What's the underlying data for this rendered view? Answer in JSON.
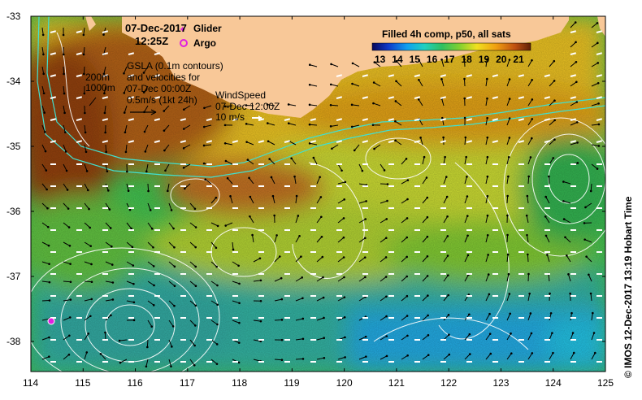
{
  "header": {
    "date": "07-Dec-2017",
    "time": "12:25Z",
    "legend_glider": "Glider",
    "legend_argo": "Argo"
  },
  "colorbar": {
    "title": "Filled 4h comp, p50, all sats",
    "ticks": [
      "13",
      "14",
      "15",
      "16",
      "17",
      "18",
      "19",
      "20",
      "21"
    ],
    "colors": [
      "#08085a",
      "#1038c8",
      "#10a0f0",
      "#20d0c0",
      "#30c060",
      "#80d030",
      "#f0e020",
      "#f0a010",
      "#c05010",
      "#602008"
    ]
  },
  "annotations": {
    "gsla": [
      "GSLA (0.1m contours)",
      "and velocities for",
      "07-Dec 00:00Z",
      "0.5m/s (1kt 24h)"
    ],
    "isobaths": [
      "200m",
      "1000m"
    ],
    "wind": [
      "WindSpeed",
      "07-Dec 12:00Z",
      "10 m/s"
    ]
  },
  "axes": {
    "lon_ticks": [
      "114",
      "115",
      "116",
      "117",
      "118",
      "119",
      "120",
      "121",
      "122",
      "123",
      "124",
      "125"
    ],
    "lat_ticks": [
      "-33",
      "-34",
      "-35",
      "-36",
      "-37",
      "-38"
    ]
  },
  "credit": "© IMOS 12-Dec-2017 13:19 Hobart Time",
  "colors": {
    "land": "#f8c898",
    "glider": "#e020e0",
    "argo": "#e020e0"
  },
  "icons": [
    "glider-star-icon",
    "argo-circle-icon",
    "velocity-arrow-icon",
    "wind-arrow-icon"
  ]
}
